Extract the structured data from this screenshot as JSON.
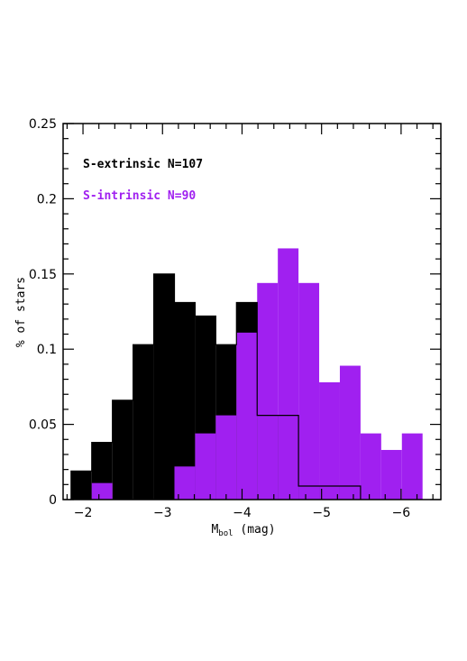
{
  "chart_data": {
    "type": "bar",
    "xlabel": {
      "main": "M",
      "sub": "bol",
      "rest": " (mag)"
    },
    "ylabel": "% of stars",
    "xlim": [
      -1.75,
      -6.5
    ],
    "ylim": [
      0,
      0.25
    ],
    "x_ticks": [
      -2,
      -3,
      -4,
      -5,
      -6
    ],
    "x_tick_labels": [
      "−2",
      "−3",
      "−4",
      "−5",
      "−6"
    ],
    "y_ticks": [
      0,
      0.05,
      0.1,
      0.15,
      0.2,
      0.25
    ],
    "y_tick_labels": [
      "0",
      "0.05",
      "0.1",
      "0.15",
      "0.2",
      "0.25"
    ],
    "bin_width": 0.26,
    "series": [
      {
        "name": "S-extrinsic N=107",
        "color": "#000000",
        "bin_starts": [
          -1.85,
          -2.11,
          -2.37,
          -2.63,
          -2.89,
          -3.15,
          -3.41,
          -3.67,
          -3.93,
          -4.19,
          -4.45,
          -4.71,
          -4.97,
          -5.23
        ],
        "values": [
          0.019,
          0.038,
          0.066,
          0.103,
          0.15,
          0.131,
          0.122,
          0.103,
          0.131,
          0.056,
          0.056,
          0.009,
          0.009,
          0.009
        ]
      },
      {
        "name": "S-intrinsic N=90",
        "color": "#a020f0",
        "bin_starts": [
          -2.11,
          -2.37,
          -2.63,
          -2.89,
          -3.15,
          -3.41,
          -3.67,
          -3.93,
          -4.19,
          -4.45,
          -4.71,
          -4.97,
          -5.23,
          -5.49,
          -5.75
        ],
        "values": [
          0.011,
          0,
          0,
          0,
          0.022,
          0.044,
          0.056,
          0.111,
          0.144,
          0.167,
          0.144,
          0.078,
          0.089,
          0.044,
          0.033
        ]
      }
    ],
    "extra_bins": [
      {
        "series": 1,
        "bin_start": -5.75,
        "values": [
          0.033,
          0.044
        ]
      }
    ]
  }
}
